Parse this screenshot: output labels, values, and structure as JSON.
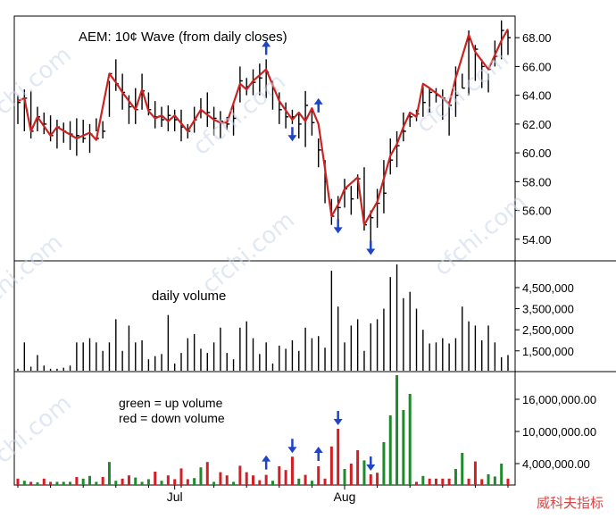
{
  "chart_data": [
    {
      "type": "ohlc",
      "panel": "price",
      "title": "AEM:  10¢ Wave (from daily closes)",
      "ylim": [
        52.5,
        69.5
      ],
      "ticks": [
        "54.00",
        "56.00",
        "58.00",
        "60.00",
        "62.00",
        "64.00",
        "66.00",
        "68.00"
      ],
      "tick_values": [
        54,
        56,
        58,
        60,
        62,
        64,
        66,
        68
      ],
      "grid": false,
      "series": [
        {
          "kind": "bars",
          "high": [
            64.0,
            64.4,
            64.3,
            63.2,
            62.8,
            62.6,
            62.3,
            62.1,
            62.2,
            62.4,
            62.3,
            62.0,
            62.4,
            62.2,
            65.0,
            66.5,
            65.5,
            64.0,
            64.5,
            65.5,
            64.2,
            63.6,
            63.2,
            63.3,
            63.0,
            63.0,
            62.0,
            63.2,
            63.8,
            64.2,
            63.2,
            62.9,
            62.5,
            63.5,
            66.0,
            65.2,
            65.8,
            66.2,
            66.5,
            65.0,
            64.2,
            63.5,
            63.0,
            62.8,
            64.3,
            63.0,
            61.0,
            59.5,
            56.8,
            57.0,
            58.2,
            57.7,
            58.5,
            59.0,
            56.0,
            57.5,
            59.5,
            61.0,
            61.5,
            62.8,
            62.7,
            63.0,
            64.8,
            64.5,
            64.5,
            64.4,
            63.6,
            66.0,
            65.5,
            68.5,
            67.5,
            66.5,
            65.5,
            67.8,
            69.2,
            68.5
          ],
          "low": [
            62.0,
            61.5,
            61.0,
            61.5,
            61.3,
            60.8,
            60.3,
            60.7,
            60.2,
            59.8,
            60.7,
            60.0,
            61.5,
            61.0,
            62.5,
            64.3,
            63.0,
            62.0,
            62.0,
            63.0,
            62.6,
            61.7,
            61.8,
            61.5,
            61.5,
            60.8,
            61.0,
            61.4,
            62.4,
            61.8,
            61.2,
            61.0,
            61.6,
            61.2,
            63.5,
            64.0,
            64.0,
            64.0,
            63.8,
            63.0,
            62.0,
            61.7,
            62.0,
            61.0,
            60.4,
            61.2,
            59.0,
            56.5,
            55.0,
            55.2,
            56.2,
            55.7,
            56.8,
            54.6,
            53.8,
            54.8,
            55.8,
            58.5,
            59.0,
            60.8,
            61.8,
            62.2,
            62.5,
            62.8,
            63.5,
            62.3,
            61.2,
            62.5,
            64.5,
            64.0,
            65.0,
            64.5,
            64.2,
            66.0,
            66.5,
            66.8
          ],
          "close": [
            63.5,
            63.8,
            61.5,
            62.5,
            62.0,
            61.2,
            61.8,
            61.5,
            61.3,
            61.2,
            61.0,
            61.3,
            61.0,
            61.5,
            65.5,
            64.8,
            64.2,
            63.2,
            63.0,
            64.3,
            63.0,
            62.5,
            62.3,
            62.6,
            62.3,
            61.8,
            61.5,
            62.3,
            62.9,
            62.8,
            62.4,
            62.2,
            62.0,
            62.4,
            65.0,
            64.6,
            64.9,
            65.2,
            65.6,
            64.5,
            63.0,
            62.5,
            62.5,
            62.0,
            63.3,
            62.1,
            60.2,
            58.0,
            55.6,
            56.2,
            57.5,
            56.8,
            58.2,
            55.0,
            55.5,
            56.5,
            57.2,
            59.5,
            60.5,
            61.5,
            62.5,
            62.7,
            63.5,
            64.2,
            64.0,
            63.8,
            63.3,
            64.0,
            64.5,
            67.9,
            67.2,
            66.0,
            65.8,
            66.7,
            68.5,
            68.0
          ]
        },
        {
          "kind": "wave",
          "name": "10¢ Wave",
          "points": [
            [
              0,
              63.6
            ],
            [
              1,
              63.8
            ],
            [
              2,
              61.5
            ],
            [
              3,
              62.5
            ],
            [
              5,
              61.2
            ],
            [
              6,
              61.8
            ],
            [
              9,
              61.0
            ],
            [
              11,
              61.4
            ],
            [
              12,
              60.9
            ],
            [
              14,
              65.5
            ],
            [
              15,
              64.9
            ],
            [
              16,
              64.2
            ],
            [
              18,
              63.0
            ],
            [
              19,
              64.4
            ],
            [
              20,
              62.9
            ],
            [
              21,
              62.4
            ],
            [
              22,
              62.6
            ],
            [
              23,
              62.2
            ],
            [
              24,
              62.6
            ],
            [
              26,
              61.5
            ],
            [
              28,
              63.0
            ],
            [
              30,
              62.3
            ],
            [
              31,
              62.1
            ],
            [
              32,
              62.1
            ],
            [
              34,
              64.8
            ],
            [
              35,
              64.4
            ],
            [
              36,
              65.0
            ],
            [
              38,
              65.8
            ],
            [
              40,
              63.6
            ],
            [
              42,
              62.3
            ],
            [
              43,
              62.8
            ],
            [
              44,
              62.2
            ],
            [
              45,
              63.1
            ],
            [
              46,
              62.0
            ],
            [
              47,
              58.9
            ],
            [
              48,
              55.6
            ],
            [
              49,
              56.4
            ],
            [
              50,
              57.5
            ],
            [
              52,
              58.3
            ],
            [
              53,
              55.0
            ],
            [
              55,
              56.6
            ],
            [
              57,
              59.8
            ],
            [
              58,
              60.6
            ],
            [
              59,
              61.8
            ],
            [
              60,
              62.8
            ],
            [
              61,
              62.5
            ],
            [
              62,
              64.8
            ],
            [
              63,
              64.5
            ],
            [
              65,
              63.8
            ],
            [
              66,
              63.4
            ],
            [
              67,
              65.2
            ],
            [
              69,
              68.2
            ],
            [
              70,
              67.0
            ],
            [
              72,
              65.8
            ],
            [
              74,
              67.8
            ],
            [
              75,
              68.6
            ]
          ]
        }
      ],
      "annotations": [
        {
          "dir": "up",
          "x": 38,
          "y": 67.8
        },
        {
          "dir": "down",
          "x": 42,
          "y": 60.8
        },
        {
          "dir": "up",
          "x": 46,
          "y": 63.8
        },
        {
          "dir": "down",
          "x": 49,
          "y": 54.4
        },
        {
          "dir": "down",
          "x": 54,
          "y": 52.9
        }
      ]
    },
    {
      "type": "bar",
      "panel": "daily-volume",
      "title": "daily volume",
      "ylim": [
        600000,
        5600000
      ],
      "ticks": [
        "1,500,000",
        "2,500,000",
        "3,500,000",
        "4,500,000"
      ],
      "tick_values": [
        1500000,
        2500000,
        3500000,
        4500000
      ],
      "values": [
        650000,
        1900000,
        750000,
        1300000,
        800000,
        650000,
        650000,
        700000,
        800000,
        1900000,
        1900000,
        2100000,
        1900000,
        1500000,
        1900000,
        3000000,
        1500000,
        2700000,
        1900000,
        2000000,
        1100000,
        1250000,
        1350000,
        3200000,
        900000,
        1400000,
        2100000,
        2300000,
        1600000,
        1400000,
        1900000,
        2600000,
        1400000,
        1100000,
        2600000,
        2900000,
        2100000,
        1350000,
        1900000,
        900000,
        1750000,
        1600000,
        2000000,
        1500000,
        2600000,
        2100000,
        2200000,
        1650000,
        5300000,
        3600000,
        1900000,
        2700000,
        3000000,
        1500000,
        2800000,
        3000000,
        3500000,
        5000000,
        5600000,
        4000000,
        4300000,
        3500000,
        2500000,
        1850000,
        1900000,
        2100000,
        1850000,
        2100000,
        3600000,
        2900000,
        2700000,
        2000000,
        2700000,
        1900000,
        1200000,
        1300000
      ]
    },
    {
      "type": "bar",
      "panel": "up-down-volume",
      "title": "green = up volume\nred = down volume",
      "ylim": [
        0,
        20500000
      ],
      "ticks": [
        "4,000,000.00",
        "10,000,000.00",
        "16,000,000.00"
      ],
      "tick_values": [
        4000000,
        10000000,
        16000000
      ],
      "series": [
        {
          "name": "up volume",
          "color": "#1f8a2b"
        },
        {
          "name": "down volume",
          "color": "#d21f26"
        }
      ],
      "values": [
        1200000,
        800000,
        600000,
        500000,
        1200000,
        600000,
        600000,
        600000,
        600000,
        1500000,
        1200000,
        1700000,
        600000,
        1500000,
        4300000,
        800000,
        1200000,
        1800000,
        1400000,
        600000,
        1100000,
        2500000,
        800000,
        1800000,
        1100000,
        3100000,
        1100000,
        1300000,
        3300000,
        4300000,
        600000,
        2400000,
        1800000,
        600000,
        3600000,
        2400000,
        1800000,
        900000,
        1900000,
        800000,
        3500000,
        2800000,
        5300000,
        1200000,
        1900000,
        800000,
        3500000,
        1200000,
        7200000,
        10500000,
        3000000,
        4000000,
        6500000,
        4600000,
        2000000,
        2300000,
        8000000,
        13000000,
        20500000,
        14000000,
        17000000,
        600000,
        1700000,
        1200000,
        1200000,
        1200000,
        1200000,
        3000000,
        6000000,
        1200000,
        4400000,
        1100000,
        2000000,
        1600000,
        4000000,
        1200000
      ],
      "direction": [
        "dn",
        "up",
        "dn",
        "up",
        "dn",
        "dn",
        "up",
        "up",
        "up",
        "dn",
        "up",
        "up",
        "up",
        "dn",
        "up",
        "up",
        "dn",
        "dn",
        "up",
        "up",
        "up",
        "dn",
        "up",
        "dn",
        "dn",
        "dn",
        "dn",
        "up",
        "up",
        "dn",
        "up",
        "dn",
        "dn",
        "up",
        "dn",
        "dn",
        "dn",
        "dn",
        "dn",
        "up",
        "dn",
        "dn",
        "dn",
        "up",
        "dn",
        "up",
        "dn",
        "dn",
        "dn",
        "dn",
        "up",
        "dn",
        "dn",
        "up",
        "dn",
        "dn",
        "up",
        "up",
        "up",
        "up",
        "up",
        "dn",
        "up",
        "dn",
        "dn",
        "dn",
        "dn",
        "up",
        "up",
        "dn",
        "dn",
        "dn",
        "up",
        "up",
        "up",
        "dn"
      ],
      "annotations": [
        {
          "dir": "up",
          "x": 38
        },
        {
          "dir": "down",
          "x": 42
        },
        {
          "dir": "up",
          "x": 46
        },
        {
          "dir": "down",
          "x": 49
        },
        {
          "dir": "down",
          "x": 54
        }
      ]
    }
  ],
  "x_axis": {
    "labels": [
      {
        "text": "Jul",
        "index": 24
      },
      {
        "text": "Aug",
        "index": 50
      }
    ]
  },
  "watermark": [
    "cfchi.com",
    "cfchi.com",
    "cfchi.com",
    "cfchi.com",
    "cfchi.com",
    "cfchi.com",
    "cfchi.com"
  ],
  "logo_text": "威科夫指标",
  "colors": {
    "wave": "#cc2222",
    "arrow": "#1f44c8",
    "up": "#1f8a2b",
    "down": "#d21f26",
    "bar": "#000000"
  }
}
